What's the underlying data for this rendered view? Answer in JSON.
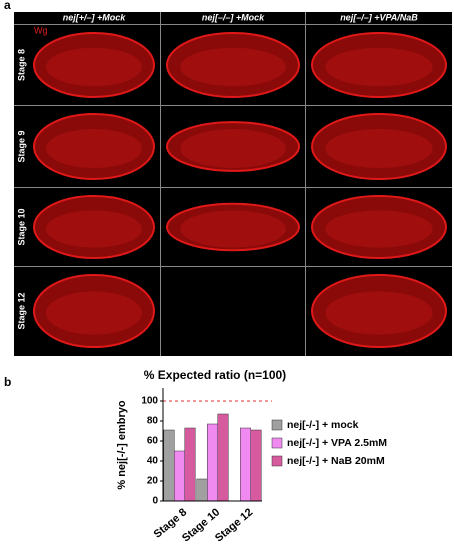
{
  "panel_a": {
    "label": "a",
    "stain": "Wg",
    "columns": [
      "nej[+/–] +Mock",
      "nej[–/–] +Mock",
      "nej[–/–] +VPA/NaB"
    ],
    "rows": [
      "Stage 8",
      "Stage 9",
      "Stage 10",
      "Stage 12"
    ]
  },
  "panel_b_label": "b",
  "chart_data": {
    "type": "bar",
    "title": "% Expected ratio (n=100)",
    "y_label": "% nej[-/-] embryo",
    "categories": [
      "Stage 8",
      "Stage 10",
      "Stage 12"
    ],
    "series": [
      {
        "name": "nej[-/-] + mock",
        "color": "#a0a0a0",
        "values": [
          71,
          22,
          null
        ]
      },
      {
        "name": "nej[-/-] + VPA 2.5mM",
        "color": "#f08af0",
        "values": [
          50,
          77,
          73
        ]
      },
      {
        "name": "nej[-/-] + NaB 20mM",
        "color": "#d65a9e",
        "values": [
          73,
          87,
          71
        ]
      }
    ],
    "ylim": [
      0,
      113
    ],
    "yticks": [
      0,
      20,
      40,
      60,
      80,
      100
    ],
    "reference_line": 100,
    "reference_color": "#e03030"
  }
}
